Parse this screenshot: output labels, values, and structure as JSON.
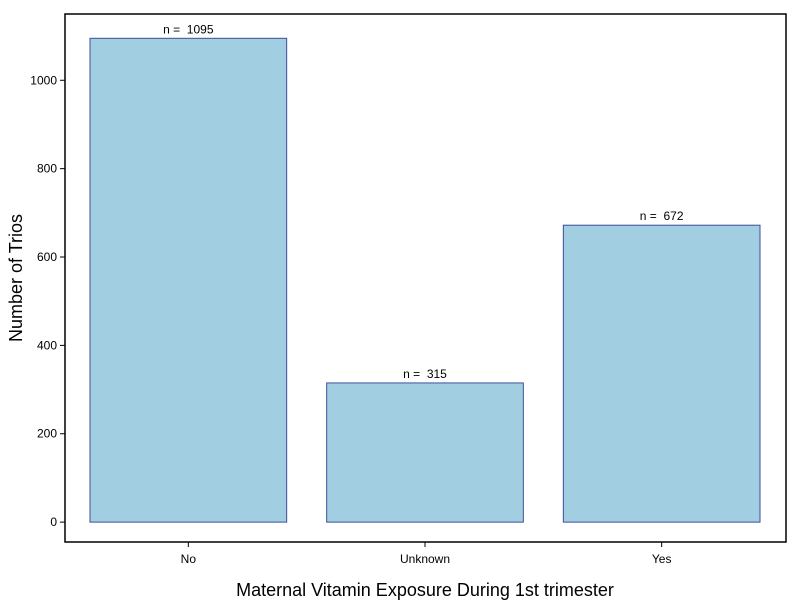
{
  "chart_data": {
    "type": "bar",
    "title": "",
    "xlabel": "Maternal Vitamin Exposure During 1st trimester",
    "ylabel": "Number of Trios",
    "categories": [
      "No",
      "Unknown",
      "Yes"
    ],
    "values": [
      1095,
      315,
      672
    ],
    "data_labels": [
      "n =  1095",
      "n =  315",
      "n =  672"
    ],
    "ylim": [
      -45,
      1150
    ],
    "yticks": [
      0,
      200,
      400,
      600,
      800,
      1000
    ],
    "ytick_labels": [
      "0",
      "200",
      "400",
      "600",
      "800",
      "1000"
    ],
    "grid": false,
    "legend": "none",
    "colors": {
      "bar_fill": "#a1cfe1",
      "bar_stroke": "#3e4c9c",
      "axis": "#000000"
    }
  }
}
